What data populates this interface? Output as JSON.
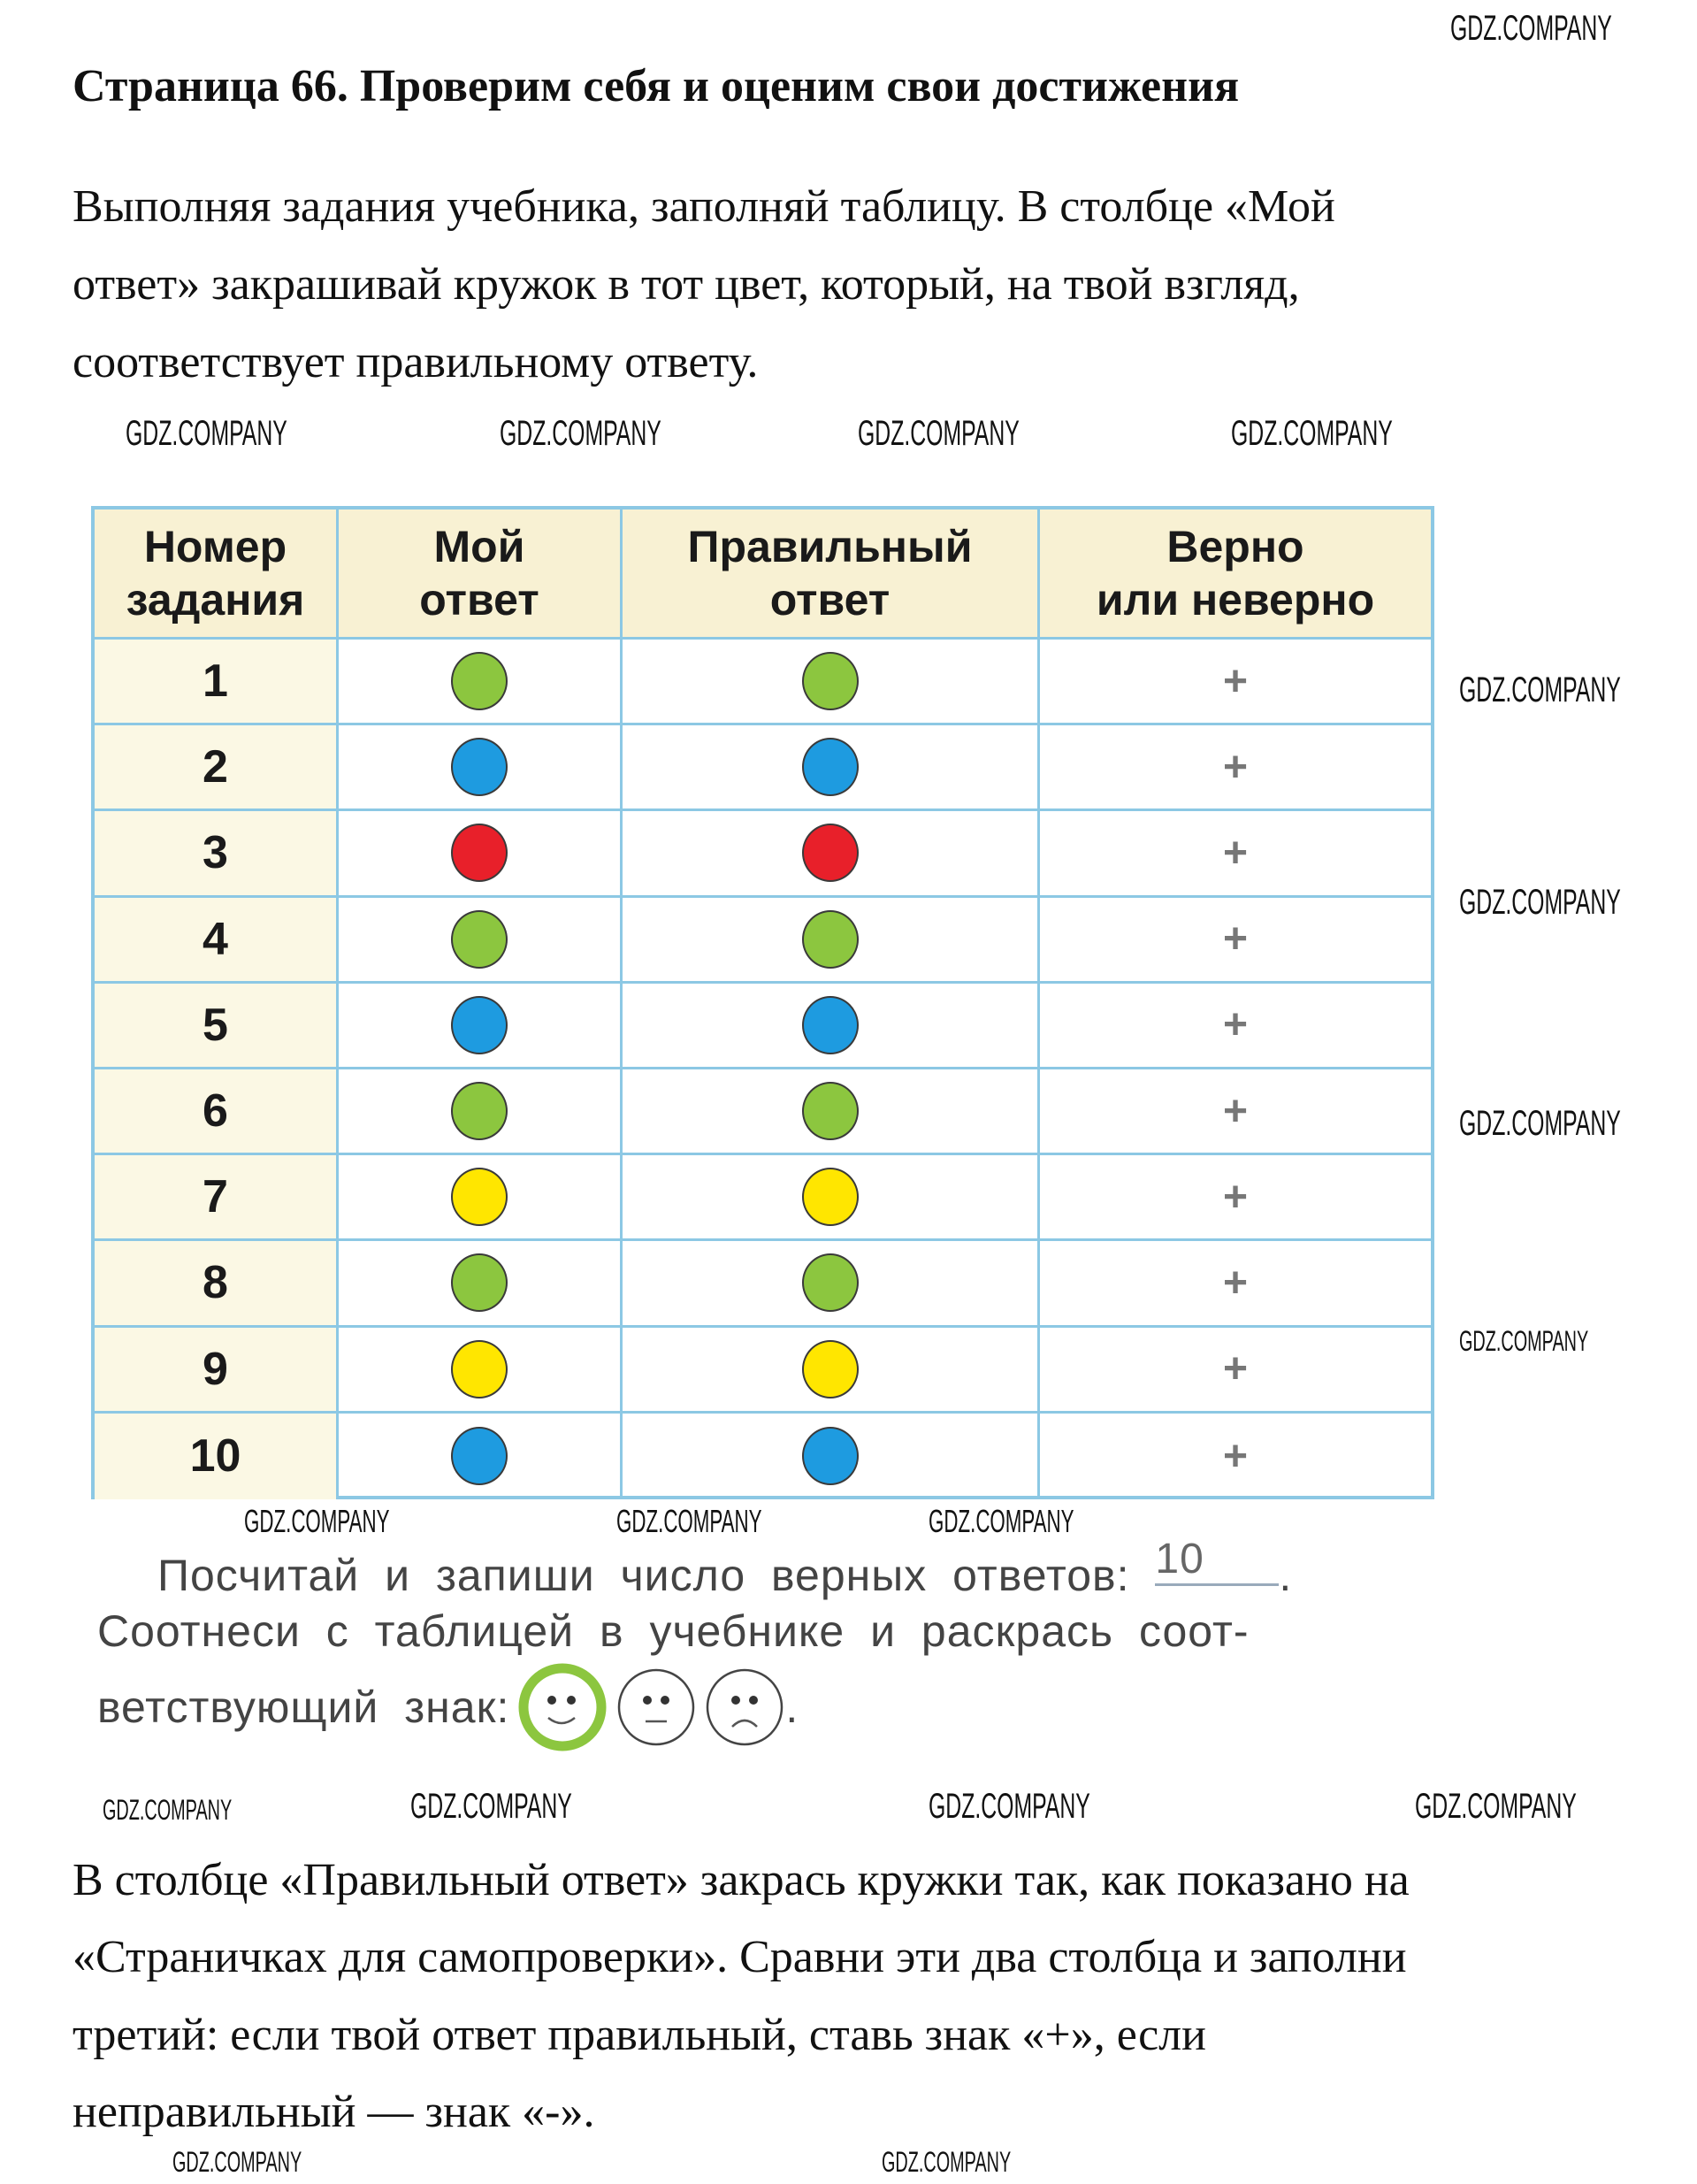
{
  "title": "Страница 66. Проверим себя и оценим свои достижения",
  "intro_lines": [
    "Выполняя задания учебника, заполняй таблицу. В столбце «Мой",
    "ответ» закрашивай кружок в тот цвет, который, на твой взгляд,",
    "соответствует правильному ответу."
  ],
  "table": {
    "headers": [
      "Номер\nзадания",
      "Мой\nответ",
      "Правильный\nответ",
      "Верно\nили неверно"
    ],
    "rows": [
      {
        "number": "1",
        "my": "green",
        "correct": "green",
        "mark": "+"
      },
      {
        "number": "2",
        "my": "blue",
        "correct": "blue",
        "mark": "+"
      },
      {
        "number": "3",
        "my": "red",
        "correct": "red",
        "mark": "+"
      },
      {
        "number": "4",
        "my": "green",
        "correct": "green",
        "mark": "+"
      },
      {
        "number": "5",
        "my": "blue",
        "correct": "blue",
        "mark": "+"
      },
      {
        "number": "6",
        "my": "green",
        "correct": "green",
        "mark": "+"
      },
      {
        "number": "7",
        "my": "yellow",
        "correct": "yellow",
        "mark": "+"
      },
      {
        "number": "8",
        "my": "green",
        "correct": "green",
        "mark": "+"
      },
      {
        "number": "9",
        "my": "yellow",
        "correct": "yellow",
        "mark": "+"
      },
      {
        "number": "10",
        "my": "blue",
        "correct": "blue",
        "mark": "+"
      }
    ]
  },
  "colors": {
    "green": "#8cc63f",
    "blue": "#1e9be0",
    "red": "#e8202a",
    "yellow": "#ffe600",
    "border": "#8cc8e4"
  },
  "task": {
    "line1": "Посчитай и запиши число верных ответов:",
    "answer": "10",
    "line2": "Соотнеси с таблицей в учебнике и раскрась соот-",
    "line3": "ветствующий знак:",
    "faces": [
      "smile-face",
      "neutral-face",
      "sad-face"
    ],
    "selected_face": "smile-face"
  },
  "outro_lines": [
    "В столбце «Правильный ответ» закрась кружки так, как показано на",
    "«Страничках для самопроверки». Сравни эти два столбца и заполни",
    "третий: если твой ответ правильный, ставь знак «+», если",
    "неправильный — знак «-»."
  ],
  "watermark": "GDZ.COMPANY"
}
